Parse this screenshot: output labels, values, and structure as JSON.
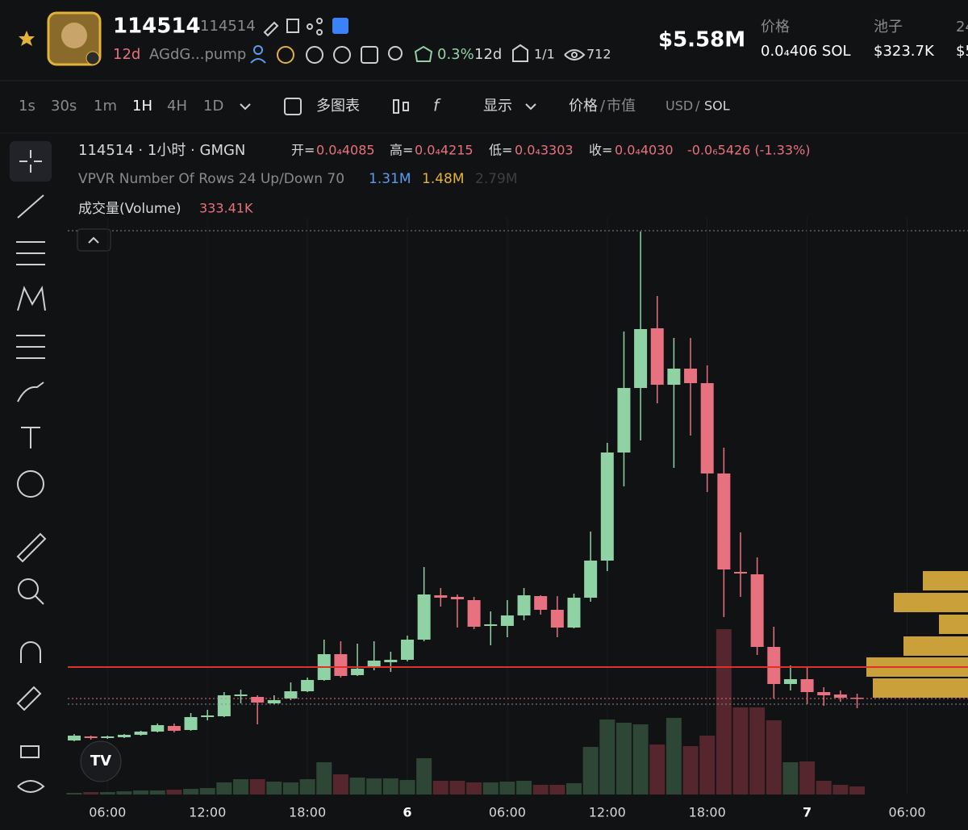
{
  "header": {
    "title": "114514",
    "ticker": "114514",
    "age": "12d",
    "address": "AGdG...pump",
    "top10": "0.3%",
    "age2": "12d",
    "ratio": "1/1",
    "views": "712",
    "market_cap": "$5.58M",
    "price_label": "价格",
    "price": "0.0₄406 SOL",
    "pool_label": "池子",
    "pool": "$323.7K",
    "cut_label": "24",
    "cut_value": "$5"
  },
  "toolbar": {
    "intervals": [
      "1s",
      "30s",
      "1m",
      "1H",
      "4H",
      "1D"
    ],
    "multi": "多图表",
    "display": "显示",
    "price": "价格",
    "mcap": "市值",
    "usd": "USD",
    "sol": "SOL"
  },
  "legend": {
    "symbol": "114514 · 1小时 · GMGN",
    "open_label": "开=",
    "open": "0.0₄4085",
    "high_label": "高=",
    "high": "0.0₄4215",
    "low_label": "低=",
    "low": "0.0₄3303",
    "close_label": "收=",
    "close": "0.0₄4030",
    "change": "-0.0₆5426 (-1.33%)",
    "vpvr": "VPVR Number Of Rows 24 Up/Down 70",
    "vpvr_up": "1.31M",
    "vpvr_down": "1.48M",
    "vpvr_total": "2.79M",
    "volume_name": "成交量(Volume)",
    "volume_value": "333.41K"
  },
  "chart_data": {
    "type": "candlestick",
    "categories": [
      null,
      null,
      "06:00",
      null,
      null,
      null,
      null,
      null,
      "12:00",
      null,
      null,
      null,
      null,
      null,
      "18:00",
      null,
      null,
      null,
      null,
      null,
      "6",
      null,
      null,
      null,
      null,
      null,
      "06:00",
      null,
      null,
      null,
      null,
      null,
      "12:00",
      null,
      null,
      null,
      null,
      null,
      "18:00",
      null,
      null,
      null,
      null,
      null,
      "7",
      null,
      null,
      null,
      null,
      null,
      "06:00"
    ],
    "open": [
      6.7,
      7.2,
      7.0,
      7.1,
      7.4,
      7.8,
      8.5,
      8.0,
      9.6,
      9.7,
      12.2,
      12.1,
      11.3,
      11.9,
      12.8,
      14.2,
      17.4,
      14.8,
      15.7,
      16.4,
      16.7,
      19.2,
      24.7,
      24.5,
      24.1,
      20.9,
      20.9,
      22.2,
      24.6,
      22.9,
      20.7,
      24.4,
      29.0,
      42.4,
      50.4,
      57.8,
      50.8,
      52.8,
      51.0,
      39.8,
      27.6,
      27.3,
      18.3,
      13.7,
      14.3,
      12.7,
      12.4,
      12.0,
      null,
      null,
      null
    ],
    "high": [
      7.5,
      7.3,
      7.3,
      7.5,
      7.9,
      8.8,
      8.8,
      10.1,
      10.5,
      12.7,
      13.0,
      12.3,
      12.3,
      13.9,
      14.5,
      19.2,
      19.0,
      18.7,
      19.0,
      17.7,
      19.7,
      28.2,
      25.6,
      24.8,
      24.5,
      22.7,
      24.1,
      25.6,
      24.7,
      24.6,
      24.9,
      32.6,
      43.6,
      57.4,
      69.8,
      61.8,
      56.6,
      56.6,
      53.2,
      43.0,
      32.5,
      29.4,
      20.8,
      16.0,
      15.8,
      13.3,
      12.9,
      12.5,
      null,
      null,
      null
    ],
    "low": [
      6.6,
      6.8,
      6.9,
      7.0,
      7.3,
      7.7,
      7.7,
      7.9,
      9.2,
      9.6,
      11.3,
      8.7,
      11.2,
      11.7,
      12.7,
      14.1,
      14.5,
      14.7,
      15.4,
      15.2,
      16.5,
      19.0,
      23.3,
      20.7,
      20.5,
      18.5,
      19.5,
      21.6,
      22.3,
      19.5,
      20.6,
      23.9,
      27.7,
      38.2,
      43.9,
      48.5,
      40.5,
      44.5,
      37.5,
      22.0,
      24.5,
      17.3,
      11.9,
      12.9,
      11.2,
      11.0,
      11.5,
      10.7,
      null,
      null,
      null
    ],
    "close": [
      7.3,
      7.0,
      7.2,
      7.4,
      7.8,
      8.6,
      7.9,
      9.6,
      9.8,
      12.3,
      12.4,
      11.4,
      11.7,
      12.8,
      14.2,
      17.4,
      14.7,
      15.6,
      16.6,
      16.7,
      19.2,
      24.8,
      24.4,
      24.2,
      20.8,
      21.1,
      22.2,
      24.7,
      22.9,
      20.7,
      24.4,
      29.0,
      42.4,
      50.4,
      57.7,
      50.8,
      52.8,
      51.0,
      39.8,
      27.9,
      27.4,
      18.3,
      13.7,
      14.3,
      12.7,
      12.3,
      12.0,
      11.9,
      null,
      null,
      null
    ],
    "volume": [
      67,
      100,
      100,
      133,
      167,
      167,
      200,
      233,
      267,
      500,
      633,
      633,
      533,
      500,
      633,
      1334,
      834,
      700,
      667,
      667,
      600,
      1500,
      567,
      567,
      500,
      500,
      533,
      567,
      400,
      400,
      467,
      1967,
      3101,
      2967,
      2900,
      2067,
      3167,
      2000,
      2434,
      6835,
      3601,
      3601,
      3067,
      1334,
      1367,
      567,
      400,
      333.41,
      null,
      null,
      null
    ],
    "up_color": "#8fd3a5",
    "down_color": "#e8717f",
    "volume_up_color": "#2e4636",
    "volume_down_color": "#55262e"
  }
}
